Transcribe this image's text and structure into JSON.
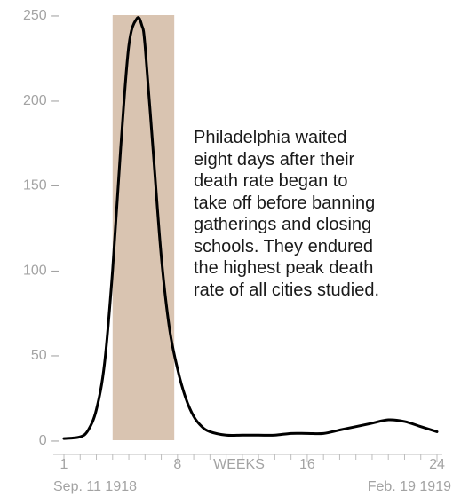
{
  "chart_data": {
    "type": "line",
    "title": "",
    "xlabel": "WEEKS",
    "ylabel": "",
    "xlim": [
      1,
      24
    ],
    "ylim": [
      0,
      250
    ],
    "y_ticks": [
      0,
      50,
      100,
      150,
      200,
      250
    ],
    "y_tick_labels": [
      "0 –",
      "50 –",
      "100 –",
      "150 –",
      "200 –",
      "250 –"
    ],
    "x_ticks": [
      1,
      8,
      16,
      24
    ],
    "x_tick_labels": [
      "1",
      "8",
      "16",
      "24"
    ],
    "x_minor_ticks": [
      1,
      2,
      3,
      4,
      5,
      6,
      7,
      8,
      9,
      10,
      11,
      12,
      13,
      14,
      15,
      16,
      17,
      18,
      19,
      20,
      21,
      22,
      23,
      24
    ],
    "x_start_label": "Sep. 11 1918",
    "x_end_label": "Feb. 19 1919",
    "highlight_range": [
      4,
      7.8
    ],
    "highlight_color": "#d9c4b1",
    "line_color": "#000000",
    "grid": false,
    "annotation_lines": [
      "Philadelphia waited",
      "eight days after their",
      "death rate began to",
      "take off before banning",
      "gatherings and closing",
      "schools. They endured",
      "the highest peak death",
      "rate of all cities studied."
    ],
    "series": [
      {
        "x": [
          1,
          2,
          2.5,
          3,
          3.5,
          4,
          4.5,
          5,
          5.5,
          5.8,
          6,
          6.5,
          7,
          7.5,
          8,
          8.5,
          9,
          9.5,
          10,
          11,
          12,
          13,
          14,
          15,
          16,
          17,
          18,
          19,
          20,
          21,
          22,
          23,
          24
        ],
        "y": [
          1,
          2,
          6,
          18,
          45,
          100,
          172,
          232,
          248,
          244,
          232,
          170,
          108,
          66,
          42,
          25,
          14,
          8,
          5,
          3,
          3,
          3,
          3,
          4,
          4,
          4,
          6,
          8,
          10,
          12,
          11,
          8,
          5
        ]
      }
    ]
  }
}
